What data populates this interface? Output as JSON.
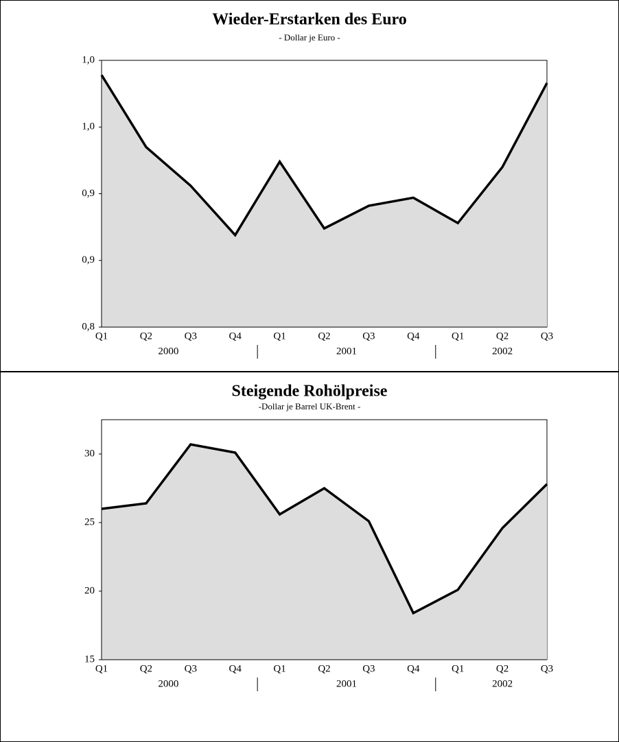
{
  "chart_data": [
    {
      "type": "area",
      "title": "Wieder-Erstarken des Euro",
      "subtitle": "- Dollar je Euro -",
      "categories": [
        "Q1",
        "Q2",
        "Q3",
        "Q4",
        "Q1",
        "Q2",
        "Q3",
        "Q4",
        "Q1",
        "Q2",
        "Q3"
      ],
      "years": [
        "2000",
        "2001",
        "2002"
      ],
      "series": [
        {
          "name": "Dollar je Euro",
          "color": "#000000",
          "fill": "#dddddd",
          "values": [
            0.989,
            0.935,
            0.906,
            0.869,
            0.924,
            0.874,
            0.891,
            0.897,
            0.878,
            0.92,
            0.983
          ]
        }
      ],
      "ylim": [
        0.8,
        1.0
      ],
      "yticks": [
        {
          "value": 0.8,
          "label": "0,8"
        },
        {
          "value": 0.85,
          "label": "0,9"
        },
        {
          "value": 0.9,
          "label": "0,9"
        },
        {
          "value": 0.95,
          "label": "1,0"
        },
        {
          "value": 1.0,
          "label": "1,0"
        }
      ]
    },
    {
      "type": "area",
      "title": "Steigende Rohölpreise",
      "subtitle": "-Dollar je Barrel UK-Brent -",
      "categories": [
        "Q1",
        "Q2",
        "Q3",
        "Q4",
        "Q1",
        "Q2",
        "Q3",
        "Q4",
        "Q1",
        "Q2",
        "Q3"
      ],
      "years": [
        "2000",
        "2001",
        "2002"
      ],
      "series": [
        {
          "name": "Dollar je Barrel UK-Brent",
          "color": "#000000",
          "fill": "#dddddd",
          "values": [
            26.0,
            26.4,
            30.7,
            30.1,
            25.6,
            27.5,
            25.1,
            18.4,
            20.1,
            24.6,
            27.8
          ]
        }
      ],
      "ylim": [
        15,
        32.5
      ],
      "yticks": [
        15,
        20,
        25,
        30
      ]
    }
  ]
}
